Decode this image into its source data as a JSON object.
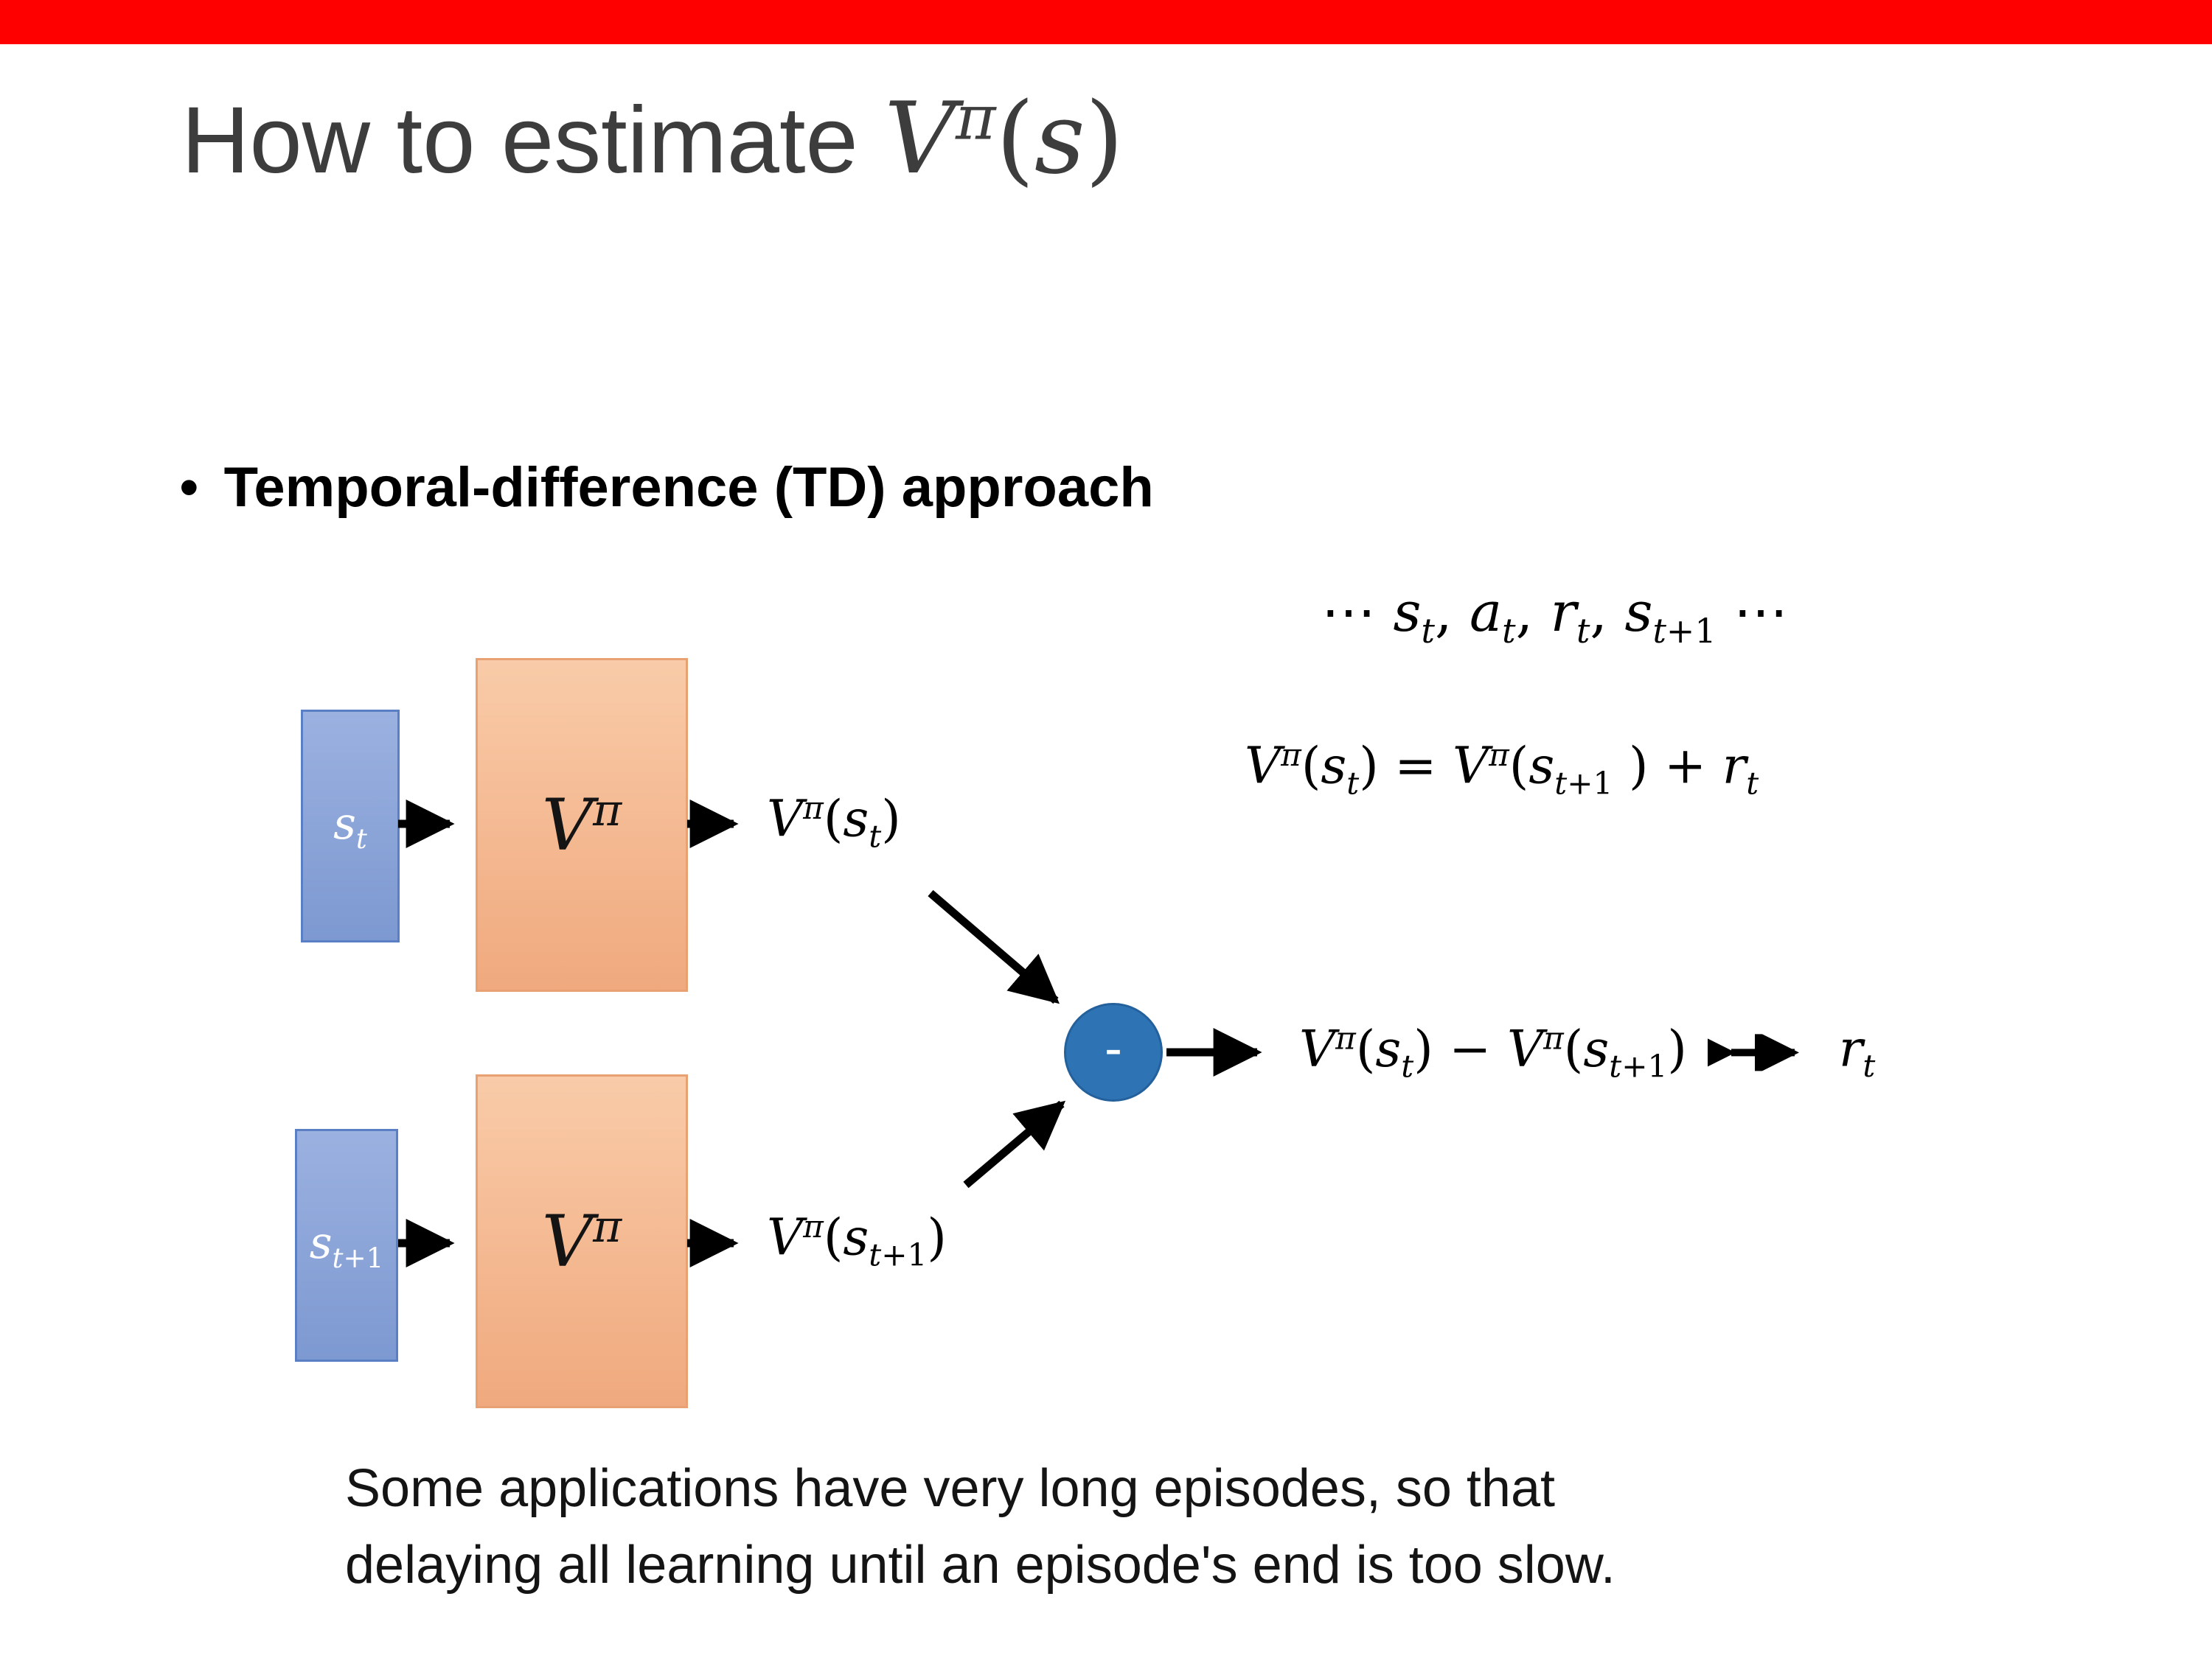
{
  "slide": {
    "top_bar_color": "#ff0000",
    "title": {
      "prefix": "How to estimate ",
      "math_html": "<i>V</i><sup><i>&#960;</i></sup>(<i>s</i>)"
    },
    "bullet": {
      "marker": "•",
      "text": "Temporal-difference (TD) approach"
    },
    "trajectory_html": "⋯ <i>s</i><sub><i>t</i></sub>, <i>a</i><sub><i>t</i></sub>, <i>r</i><sub><i>t</i></sub>, <i>s</i><sub><i>t</i>+1</sub> ⋯",
    "equation_html": "<i>V</i><sup><i>&#960;</i></sup>(<i>s</i><sub><i>t</i></sub>) = <i>V</i><sup><i>&#960;</i></sup>(<i>s</i><sub><i>t</i>+1</sub> ) + <i>r</i><sub><i>t</i></sub>",
    "diagram": {
      "state_t_html": "<i>s</i><sub><i>t</i></sub>",
      "state_t1_html": "<i>s</i><sub><i>t</i>+1</sub>",
      "value_net_html": "<i>V</i><sup><i>&#960;</i></sup>",
      "output_t_html": "<i>V</i><sup><i>&#960;</i></sup>(<i>s</i><sub><i>t</i></sub>)",
      "output_t1_html": "<i>V</i><sup><i>&#960;</i></sup>(<i>s</i><sub><i>t</i>+1</sub>)",
      "minus_label": "-",
      "difference_html": "<i>V</i><sup><i>&#960;</i></sup>(<i>s</i><sub><i>t</i></sub>) − <i>V</i><sup><i>&#960;</i></sup>(<i>s</i><sub><i>t</i>+1</sub>)",
      "reward_html": "<i>r</i><sub><i>t</i></sub>",
      "colors": {
        "state_box_fill_top": "#9bb1e0",
        "state_box_fill_bottom": "#7d99d1",
        "state_box_border": "#5b7fc4",
        "value_box_fill_top": "#f9cba8",
        "value_box_fill_bottom": "#f0a97e",
        "value_box_border": "#e8a173",
        "minus_circle_fill": "#2e74b5",
        "arrow_color": "#000000"
      }
    },
    "caption_line1": "Some applications have very long episodes, so that",
    "caption_line2": "delaying all learning until an episode's end is too slow."
  }
}
